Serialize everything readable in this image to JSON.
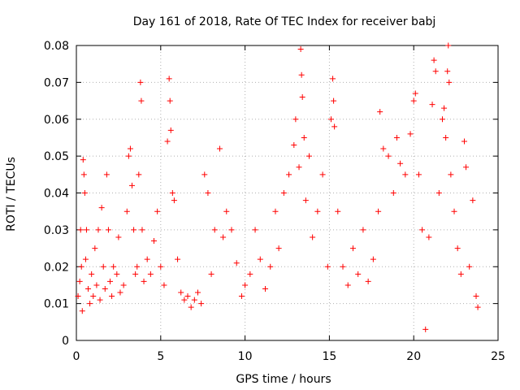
{
  "chart_data": {
    "type": "scatter",
    "title": "Day 161 of 2018, Rate Of TEC Index for receiver babj",
    "xlabel": "GPS time / hours",
    "ylabel": "ROTI / TECUs",
    "xlim": [
      0,
      25
    ],
    "ylim": [
      0,
      0.08
    ],
    "x_ticks": [
      "0",
      "5",
      "10",
      "15",
      "20",
      "25"
    ],
    "y_ticks": [
      "0",
      "0.01",
      "0.02",
      "0.03",
      "0.04",
      "0.05",
      "0.06",
      "0.07",
      "0.08"
    ],
    "grid": true,
    "marker": "+",
    "series": [
      {
        "name": "ROTI",
        "color": "#ff0000",
        "points": [
          [
            0.1,
            0.012
          ],
          [
            0.2,
            0.016
          ],
          [
            0.25,
            0.03
          ],
          [
            0.3,
            0.02
          ],
          [
            0.35,
            0.008
          ],
          [
            0.4,
            0.049
          ],
          [
            0.45,
            0.045
          ],
          [
            0.5,
            0.04
          ],
          [
            0.55,
            0.022
          ],
          [
            0.6,
            0.03
          ],
          [
            0.7,
            0.014
          ],
          [
            0.8,
            0.01
          ],
          [
            0.9,
            0.018
          ],
          [
            1.0,
            0.012
          ],
          [
            1.1,
            0.025
          ],
          [
            1.2,
            0.015
          ],
          [
            1.3,
            0.03
          ],
          [
            1.4,
            0.011
          ],
          [
            1.5,
            0.036
          ],
          [
            1.6,
            0.02
          ],
          [
            1.7,
            0.014
          ],
          [
            1.8,
            0.045
          ],
          [
            1.9,
            0.03
          ],
          [
            2.0,
            0.016
          ],
          [
            2.1,
            0.012
          ],
          [
            2.2,
            0.02
          ],
          [
            2.4,
            0.018
          ],
          [
            2.5,
            0.028
          ],
          [
            2.6,
            0.013
          ],
          [
            2.8,
            0.015
          ],
          [
            3.0,
            0.035
          ],
          [
            3.1,
            0.05
          ],
          [
            3.2,
            0.052
          ],
          [
            3.3,
            0.042
          ],
          [
            3.4,
            0.03
          ],
          [
            3.5,
            0.018
          ],
          [
            3.6,
            0.02
          ],
          [
            3.7,
            0.045
          ],
          [
            3.8,
            0.07
          ],
          [
            3.85,
            0.065
          ],
          [
            3.9,
            0.03
          ],
          [
            4.0,
            0.016
          ],
          [
            4.2,
            0.022
          ],
          [
            4.4,
            0.018
          ],
          [
            4.6,
            0.027
          ],
          [
            4.8,
            0.035
          ],
          [
            5.0,
            0.02
          ],
          [
            5.2,
            0.015
          ],
          [
            5.4,
            0.054
          ],
          [
            5.5,
            0.071
          ],
          [
            5.55,
            0.065
          ],
          [
            5.6,
            0.057
          ],
          [
            5.7,
            0.04
          ],
          [
            5.8,
            0.038
          ],
          [
            6.0,
            0.022
          ],
          [
            6.2,
            0.013
          ],
          [
            6.4,
            0.011
          ],
          [
            6.6,
            0.012
          ],
          [
            6.8,
            0.009
          ],
          [
            7.0,
            0.011
          ],
          [
            7.2,
            0.013
          ],
          [
            7.4,
            0.01
          ],
          [
            7.6,
            0.045
          ],
          [
            7.8,
            0.04
          ],
          [
            8.0,
            0.018
          ],
          [
            8.2,
            0.03
          ],
          [
            8.5,
            0.052
          ],
          [
            8.7,
            0.028
          ],
          [
            8.9,
            0.035
          ],
          [
            9.2,
            0.03
          ],
          [
            9.5,
            0.021
          ],
          [
            9.8,
            0.012
          ],
          [
            10.0,
            0.015
          ],
          [
            10.3,
            0.018
          ],
          [
            10.6,
            0.03
          ],
          [
            10.9,
            0.022
          ],
          [
            11.2,
            0.014
          ],
          [
            11.5,
            0.02
          ],
          [
            11.8,
            0.035
          ],
          [
            12.0,
            0.025
          ],
          [
            12.3,
            0.04
          ],
          [
            12.6,
            0.045
          ],
          [
            12.9,
            0.053
          ],
          [
            13.0,
            0.06
          ],
          [
            13.2,
            0.047
          ],
          [
            13.3,
            0.079
          ],
          [
            13.35,
            0.072
          ],
          [
            13.4,
            0.066
          ],
          [
            13.5,
            0.055
          ],
          [
            13.6,
            0.038
          ],
          [
            13.8,
            0.05
          ],
          [
            14.0,
            0.028
          ],
          [
            14.3,
            0.035
          ],
          [
            14.6,
            0.045
          ],
          [
            14.9,
            0.02
          ],
          [
            15.1,
            0.06
          ],
          [
            15.2,
            0.071
          ],
          [
            15.25,
            0.065
          ],
          [
            15.3,
            0.058
          ],
          [
            15.5,
            0.035
          ],
          [
            15.8,
            0.02
          ],
          [
            16.1,
            0.015
          ],
          [
            16.4,
            0.025
          ],
          [
            16.7,
            0.018
          ],
          [
            17.0,
            0.03
          ],
          [
            17.3,
            0.016
          ],
          [
            17.6,
            0.022
          ],
          [
            17.9,
            0.035
          ],
          [
            18.0,
            0.062
          ],
          [
            18.2,
            0.052
          ],
          [
            18.5,
            0.05
          ],
          [
            18.8,
            0.04
          ],
          [
            19.0,
            0.055
          ],
          [
            19.2,
            0.048
          ],
          [
            19.5,
            0.045
          ],
          [
            19.8,
            0.056
          ],
          [
            20.0,
            0.065
          ],
          [
            20.1,
            0.067
          ],
          [
            20.3,
            0.045
          ],
          [
            20.5,
            0.03
          ],
          [
            20.7,
            0.003
          ],
          [
            20.9,
            0.028
          ],
          [
            21.1,
            0.064
          ],
          [
            21.2,
            0.076
          ],
          [
            21.3,
            0.073
          ],
          [
            21.5,
            0.04
          ],
          [
            21.7,
            0.06
          ],
          [
            21.8,
            0.063
          ],
          [
            21.9,
            0.055
          ],
          [
            22.0,
            0.073
          ],
          [
            22.05,
            0.08
          ],
          [
            22.1,
            0.07
          ],
          [
            22.2,
            0.045
          ],
          [
            22.4,
            0.035
          ],
          [
            22.6,
            0.025
          ],
          [
            22.8,
            0.018
          ],
          [
            23.0,
            0.054
          ],
          [
            23.1,
            0.047
          ],
          [
            23.3,
            0.02
          ],
          [
            23.5,
            0.038
          ],
          [
            23.7,
            0.012
          ],
          [
            23.8,
            0.009
          ]
        ]
      }
    ]
  }
}
